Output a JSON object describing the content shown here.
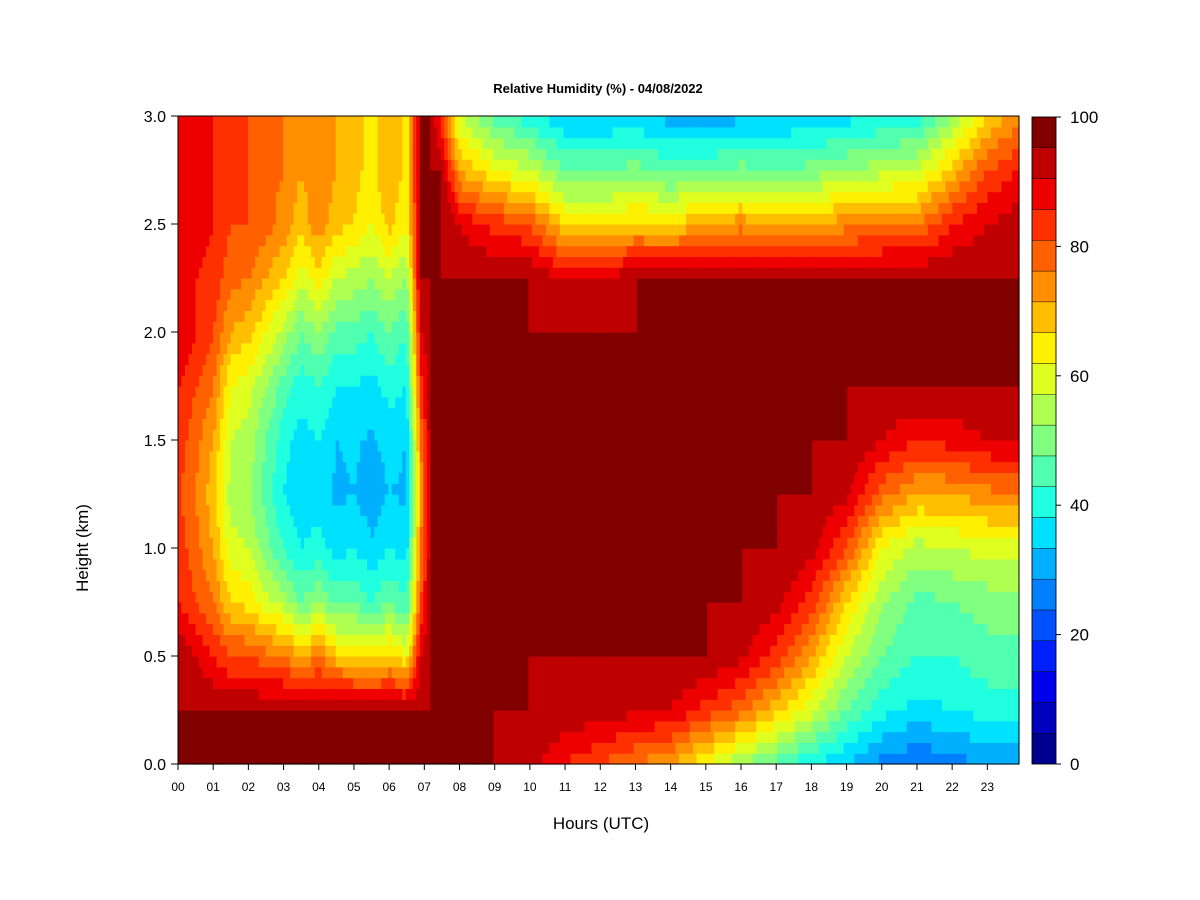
{
  "chart_data": {
    "type": "heatmap",
    "title": "Relative Humidity (%) - 04/08/2022",
    "xlabel": "Hours (UTC)",
    "ylabel": "Height (km)",
    "xlim": [
      0,
      23.9
    ],
    "ylim": [
      0,
      3.0
    ],
    "x_ticks": [
      0,
      1,
      2,
      3,
      4,
      5,
      6,
      7,
      8,
      9,
      10,
      11,
      12,
      13,
      14,
      15,
      16,
      17,
      18,
      19,
      20,
      21,
      22,
      23
    ],
    "x_tick_labels": [
      "00",
      "01",
      "02",
      "03",
      "04",
      "05",
      "06",
      "07",
      "08",
      "09",
      "10",
      "11",
      "12",
      "13",
      "14",
      "15",
      "16",
      "17",
      "18",
      "19",
      "20",
      "21",
      "22",
      "23"
    ],
    "y_ticks": [
      0.0,
      0.5,
      1.0,
      1.5,
      2.0,
      2.5,
      3.0
    ],
    "y_tick_labels": [
      "0.0",
      "0.5",
      "1.0",
      "1.5",
      "2.0",
      "2.5",
      "3.0"
    ],
    "colorbar": {
      "min": 0,
      "max": 100,
      "step": 5,
      "tick_values": [
        0,
        20,
        40,
        60,
        80,
        100
      ],
      "tick_labels": [
        "0",
        "20",
        "40",
        "60",
        "80",
        "100"
      ],
      "colors": [
        "#00008f",
        "#0000bf",
        "#0000ef",
        "#0020ff",
        "#0050ff",
        "#0080ff",
        "#00b0ff",
        "#00e0ff",
        "#20ffdf",
        "#50ffaf",
        "#80ff80",
        "#afff50",
        "#dfff20",
        "#ffef00",
        "#ffbf00",
        "#ff8f00",
        "#ff6000",
        "#ff3000",
        "#ef0000",
        "#bf0000",
        "#800000"
      ]
    },
    "rh_profiles": [
      {
        "hour": 0.0,
        "rh": [
          100,
          100,
          100,
          90,
          88,
          86,
          88,
          90,
          95,
          95,
          95,
          95,
          95
        ]
      },
      {
        "hour": 0.5,
        "rh": [
          100,
          100,
          95,
          85,
          82,
          80,
          82,
          85,
          90,
          90,
          92,
          92,
          92
        ]
      },
      {
        "hour": 1.0,
        "rh": [
          100,
          100,
          90,
          80,
          75,
          72,
          75,
          80,
          85,
          88,
          90,
          90,
          90
        ]
      },
      {
        "hour": 1.5,
        "rh": [
          100,
          100,
          85,
          70,
          62,
          58,
          60,
          65,
          75,
          82,
          85,
          85,
          85
        ]
      },
      {
        "hour": 2.0,
        "rh": [
          100,
          100,
          85,
          68,
          60,
          56,
          58,
          62,
          72,
          80,
          85,
          85,
          85
        ]
      },
      {
        "hour": 2.5,
        "rh": [
          100,
          100,
          82,
          62,
          52,
          48,
          50,
          55,
          65,
          75,
          82,
          82,
          82
        ]
      },
      {
        "hour": 3.0,
        "rh": [
          100,
          100,
          80,
          58,
          45,
          40,
          42,
          48,
          58,
          70,
          78,
          80,
          80
        ]
      },
      {
        "hour": 3.5,
        "rh": [
          100,
          100,
          75,
          50,
          40,
          36,
          38,
          42,
          50,
          62,
          72,
          75,
          75
        ]
      },
      {
        "hour": 4.0,
        "rh": [
          100,
          100,
          80,
          55,
          42,
          38,
          40,
          45,
          55,
          68,
          78,
          80,
          80
        ]
      },
      {
        "hour": 4.5,
        "rh": [
          100,
          100,
          72,
          48,
          38,
          34,
          35,
          40,
          48,
          60,
          72,
          75,
          75
        ]
      },
      {
        "hour": 5.0,
        "rh": [
          100,
          100,
          70,
          50,
          40,
          35,
          36,
          40,
          48,
          58,
          70,
          72,
          72
        ]
      },
      {
        "hour": 5.5,
        "rh": [
          100,
          100,
          68,
          45,
          36,
          32,
          34,
          38,
          45,
          55,
          65,
          68,
          68
        ]
      },
      {
        "hour": 6.0,
        "rh": [
          100,
          100,
          72,
          50,
          40,
          35,
          37,
          42,
          50,
          60,
          72,
          75,
          75
        ]
      },
      {
        "hour": 6.5,
        "rh": [
          100,
          100,
          65,
          45,
          38,
          34,
          35,
          40,
          45,
          55,
          65,
          68,
          68
        ]
      },
      {
        "hour": 6.9,
        "rh": [
          100,
          100,
          95,
          85,
          80,
          75,
          80,
          88,
          95,
          100,
          100,
          100,
          100
        ]
      },
      {
        "hour": 7.2,
        "rh": [
          100,
          100,
          100,
          100,
          100,
          100,
          100,
          100,
          100,
          100,
          100,
          100,
          100
        ]
      },
      {
        "hour": 7.5,
        "rh": [
          100,
          100,
          100,
          100,
          100,
          100,
          100,
          100,
          100,
          100,
          100,
          100,
          85
        ]
      },
      {
        "hour": 8.0,
        "rh": [
          100,
          100,
          100,
          100,
          100,
          100,
          100,
          100,
          100,
          100,
          95,
          75,
          60
        ]
      },
      {
        "hour": 9.0,
        "rh": [
          100,
          100,
          100,
          100,
          100,
          100,
          100,
          100,
          100,
          100,
          88,
          65,
          48
        ]
      },
      {
        "hour": 10.0,
        "rh": [
          97,
          100,
          100,
          100,
          100,
          100,
          100,
          100,
          100,
          100,
          85,
          60,
          42
        ]
      },
      {
        "hour": 11.0,
        "rh": [
          90,
          99,
          100,
          100,
          100,
          100,
          100,
          100,
          100,
          95,
          70,
          50,
          35
        ]
      },
      {
        "hour": 12.0,
        "rh": [
          85,
          98,
          100,
          100,
          100,
          100,
          100,
          100,
          100,
          95,
          68,
          50,
          35
        ]
      },
      {
        "hour": 13.0,
        "rh": [
          80,
          96,
          100,
          100,
          100,
          100,
          100,
          100,
          100,
          100,
          72,
          52,
          36
        ]
      },
      {
        "hour": 14.0,
        "rh": [
          75,
          95,
          100,
          100,
          100,
          100,
          100,
          100,
          100,
          100,
          70,
          48,
          33
        ]
      },
      {
        "hour": 15.0,
        "rh": [
          65,
          88,
          100,
          100,
          100,
          100,
          100,
          100,
          100,
          100,
          75,
          50,
          30
        ]
      },
      {
        "hour": 16.0,
        "rh": [
          55,
          82,
          96,
          100,
          100,
          100,
          100,
          100,
          100,
          100,
          78,
          52,
          34
        ]
      },
      {
        "hour": 17.0,
        "rh": [
          48,
          72,
          88,
          97,
          100,
          100,
          100,
          100,
          100,
          100,
          75,
          50,
          35
        ]
      },
      {
        "hour": 18.0,
        "rh": [
          40,
          62,
          75,
          88,
          97,
          100,
          100,
          100,
          100,
          100,
          75,
          52,
          36
        ]
      },
      {
        "hour": 19.0,
        "rh": [
          35,
          50,
          60,
          70,
          85,
          96,
          100,
          100,
          100,
          100,
          78,
          55,
          38
        ]
      },
      {
        "hour": 20.0,
        "rh": [
          28,
          42,
          50,
          56,
          65,
          82,
          95,
          100,
          100,
          100,
          80,
          58,
          40
        ]
      },
      {
        "hour": 21.0,
        "rh": [
          25,
          38,
          45,
          48,
          58,
          75,
          90,
          100,
          100,
          100,
          80,
          60,
          42
        ]
      },
      {
        "hour": 22.0,
        "rh": [
          28,
          40,
          45,
          50,
          60,
          75,
          92,
          100,
          100,
          100,
          90,
          72,
          55
        ]
      },
      {
        "hour": 23.0,
        "rh": [
          30,
          42,
          48,
          52,
          62,
          78,
          95,
          100,
          100,
          100,
          95,
          85,
          70
        ]
      },
      {
        "hour": 23.9,
        "rh": [
          32,
          42,
          48,
          52,
          62,
          80,
          96,
          100,
          100,
          100,
          98,
          90,
          78
        ]
      }
    ],
    "rh_profile_heights_km": [
      0.0,
      0.25,
      0.5,
      0.75,
      1.0,
      1.25,
      1.5,
      1.75,
      2.0,
      2.25,
      2.5,
      2.75,
      3.0
    ]
  }
}
